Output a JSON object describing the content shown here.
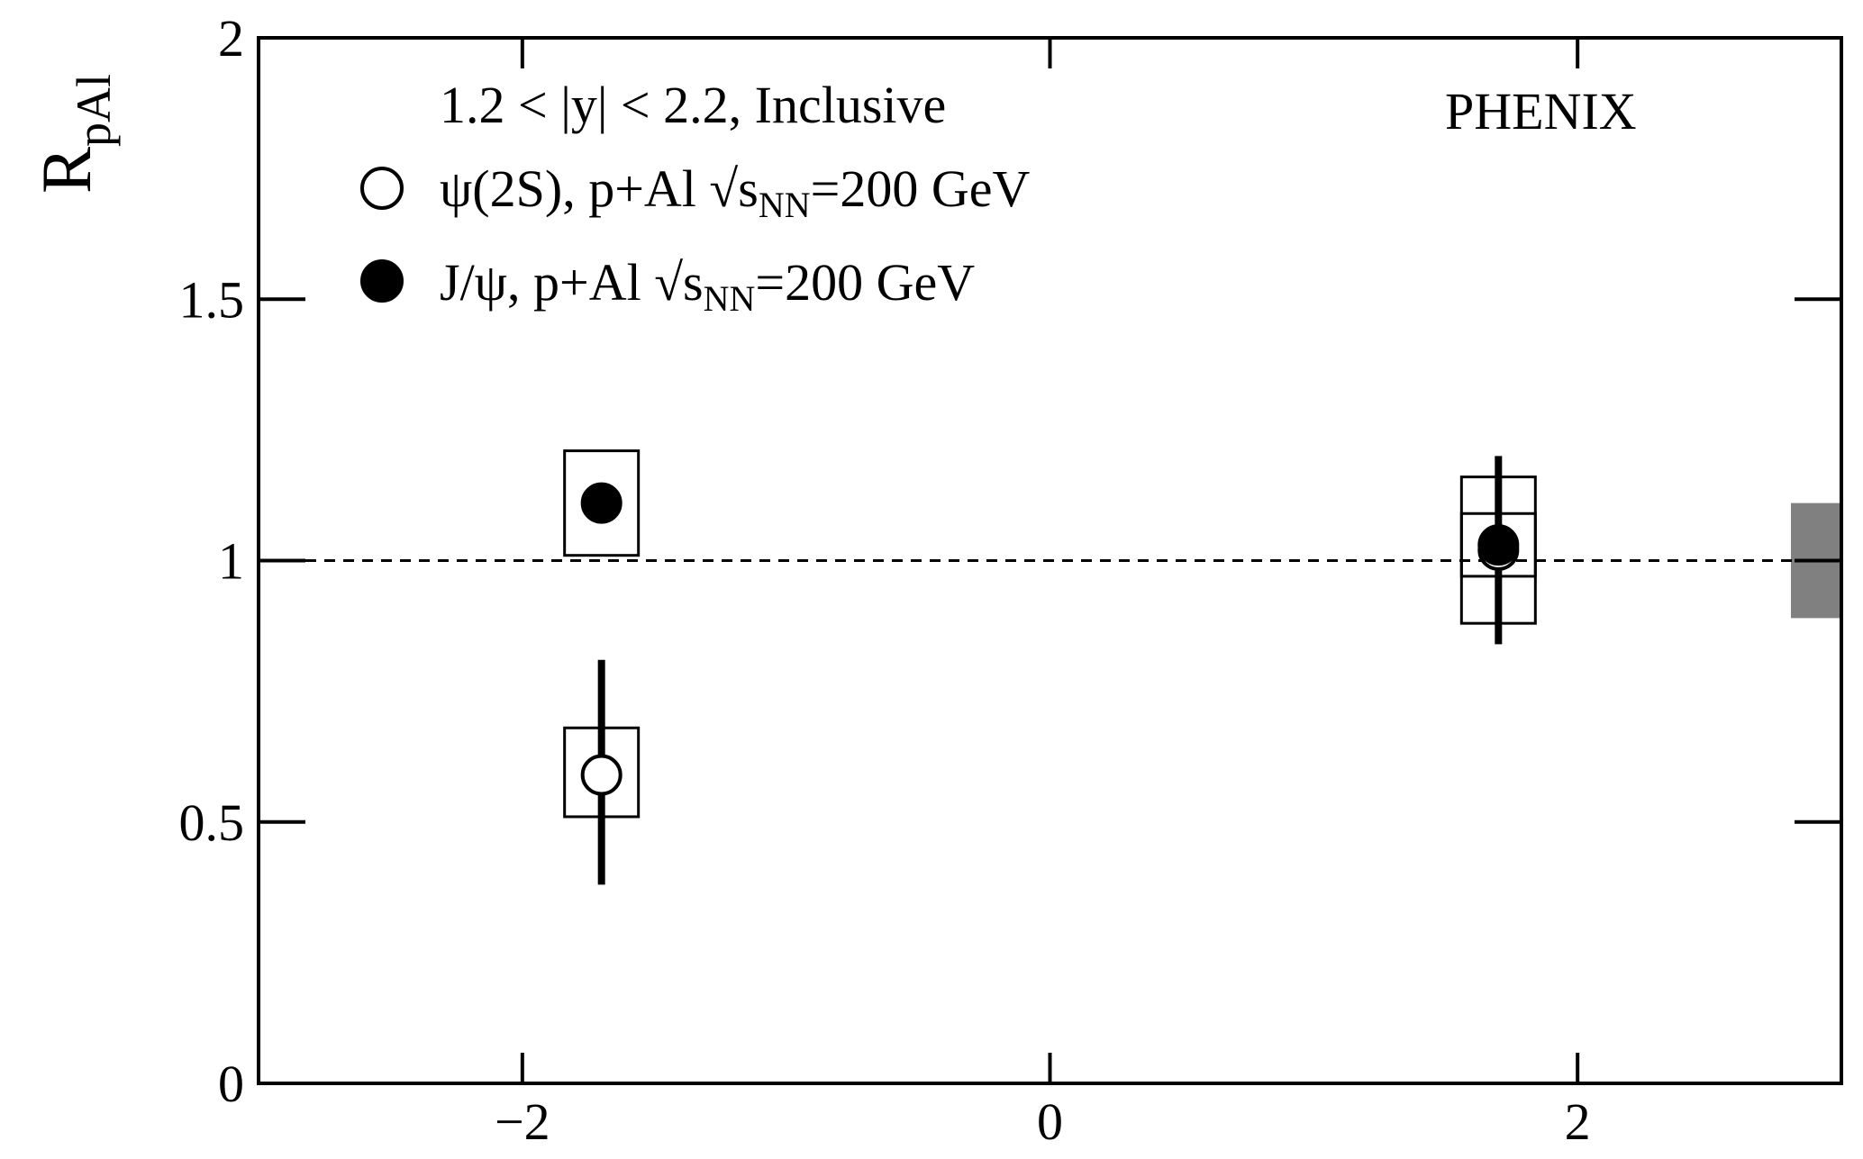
{
  "chart_data": {
    "type": "scatter",
    "title": "",
    "xlabel": "",
    "ylabel": {
      "main": "R",
      "sub": "pAl"
    },
    "xlim": [
      -3.0,
      3.0
    ],
    "ylim": [
      0,
      2
    ],
    "x_ticks": [
      {
        "value": -2,
        "label": "−2"
      },
      {
        "value": 0,
        "label": "0"
      },
      {
        "value": 2,
        "label": "2"
      }
    ],
    "y_ticks": [
      {
        "value": 0,
        "label": "0"
      },
      {
        "value": 0.5,
        "label": "0.5"
      },
      {
        "value": 1,
        "label": "1"
      },
      {
        "value": 1.5,
        "label": "1.5"
      },
      {
        "value": 2,
        "label": "2"
      }
    ],
    "reference_line": {
      "y": 1,
      "style": "dashed"
    },
    "global_uncertainty_band": {
      "y_low": 0.89,
      "y_high": 1.11,
      "color": "#808080"
    },
    "series": [
      {
        "name_parts": {
          "main": "ψ(2S), p+Al ",
          "s": "s",
          "sub": "NN",
          "rest": "=200 GeV"
        },
        "marker": "open-circle",
        "points": [
          {
            "x": -1.7,
            "y": 0.59,
            "stat_low": 0.38,
            "stat_high": 0.81,
            "sys_low": 0.51,
            "sys_high": 0.68
          },
          {
            "x": 1.7,
            "y": 1.02,
            "stat_low": 0.84,
            "stat_high": 1.2,
            "sys_low": 0.88,
            "sys_high": 1.16
          }
        ]
      },
      {
        "name_parts": {
          "main": "J/ψ, p+Al ",
          "s": "s",
          "sub": "NN",
          "rest": "=200 GeV"
        },
        "marker": "filled-circle",
        "points": [
          {
            "x": -1.7,
            "y": 1.11,
            "stat_low": 1.1,
            "stat_high": 1.12,
            "sys_low": 1.01,
            "sys_high": 1.21
          },
          {
            "x": 1.7,
            "y": 1.03,
            "stat_low": 1.02,
            "stat_high": 1.04,
            "sys_low": 0.97,
            "sys_high": 1.09
          }
        ]
      }
    ],
    "annotations": {
      "rapidity": "1.2 < |y| < 2.2, Inclusive",
      "experiment": "PHENIX"
    },
    "legend_position": "top-left",
    "grid": false
  }
}
